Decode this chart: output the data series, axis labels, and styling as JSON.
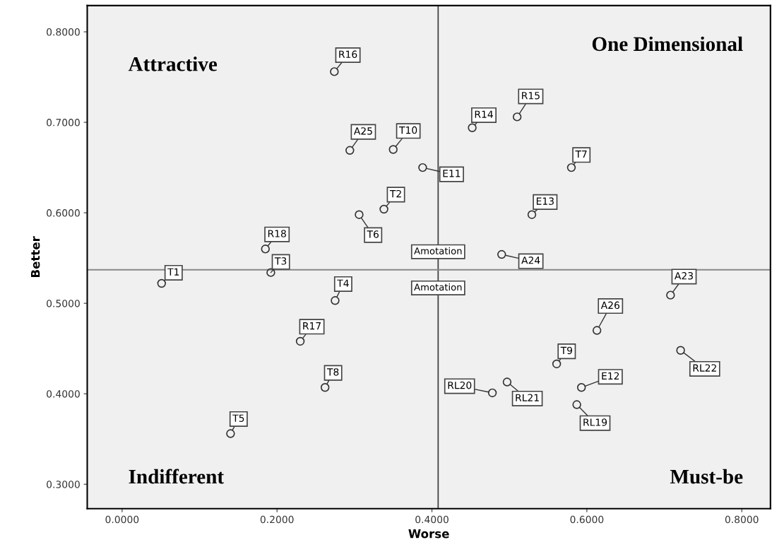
{
  "chart_data": {
    "type": "scatter",
    "xlabel": "Worse",
    "ylabel": "Better",
    "xlim": [
      -0.045,
      0.837
    ],
    "ylim": [
      0.273,
      0.829
    ],
    "xticks": [
      {
        "value": 0,
        "label": "0.0000"
      },
      {
        "value": 0.2,
        "label": "0.2000"
      },
      {
        "value": 0.4,
        "label": "0.4000"
      },
      {
        "value": 0.6,
        "label": "0.6000"
      },
      {
        "value": 0.8,
        "label": "0.8000"
      }
    ],
    "yticks": [
      {
        "value": 0.3,
        "label": "0.3000"
      },
      {
        "value": 0.4,
        "label": "0.4000"
      },
      {
        "value": 0.5,
        "label": "0.5000"
      },
      {
        "value": 0.6,
        "label": "0.6000"
      },
      {
        "value": 0.7,
        "label": "0.7000"
      },
      {
        "value": 0.8,
        "label": "0.8000"
      }
    ],
    "grid": false,
    "legend": false,
    "marker": "circle",
    "series": [
      {
        "color": "#333333",
        "x": [
          0.274,
          0.294,
          0.35,
          0.338,
          0.306,
          0.185,
          0.192,
          0.051,
          0.388,
          0.452,
          0.51,
          0.58,
          0.529,
          0.49,
          0.275,
          0.23,
          0.262,
          0.14,
          0.708,
          0.613,
          0.721,
          0.561,
          0.497,
          0.478,
          0.593,
          0.587
        ],
        "values": [
          0.756,
          0.669,
          0.67,
          0.604,
          0.598,
          0.56,
          0.534,
          0.522,
          0.65,
          0.694,
          0.706,
          0.65,
          0.598,
          0.554,
          0.503,
          0.458,
          0.407,
          0.356,
          0.509,
          0.47,
          0.448,
          0.433,
          0.413,
          0.401,
          0.407,
          0.388
        ]
      }
    ],
    "ref_lines": [
      {
        "axis": "x",
        "value": 0.408,
        "color": "#444444"
      },
      {
        "axis": "y",
        "value": 0.537,
        "color": "#888888"
      }
    ],
    "annotations": [
      "Attractive",
      "One Dimensional",
      "Indifferent",
      "Must-be",
      "Amotation",
      "Amotation",
      {
        "text": "R16",
        "x": 0.274,
        "y": 0.756
      },
      {
        "text": "A25",
        "x": 0.294,
        "y": 0.669
      },
      {
        "text": "T10",
        "x": 0.35,
        "y": 0.67
      },
      {
        "text": "T2",
        "x": 0.338,
        "y": 0.604
      },
      {
        "text": "T6",
        "x": 0.306,
        "y": 0.598
      },
      {
        "text": "R18",
        "x": 0.185,
        "y": 0.56
      },
      {
        "text": "T3",
        "x": 0.192,
        "y": 0.534
      },
      {
        "text": "T1",
        "x": 0.051,
        "y": 0.522
      },
      {
        "text": "E11",
        "x": 0.388,
        "y": 0.65
      },
      {
        "text": "R14",
        "x": 0.452,
        "y": 0.694
      },
      {
        "text": "R15",
        "x": 0.51,
        "y": 0.706
      },
      {
        "text": "T7",
        "x": 0.58,
        "y": 0.65
      },
      {
        "text": "E13",
        "x": 0.529,
        "y": 0.598
      },
      {
        "text": "A24",
        "x": 0.49,
        "y": 0.554
      },
      {
        "text": "T4",
        "x": 0.275,
        "y": 0.503
      },
      {
        "text": "R17",
        "x": 0.23,
        "y": 0.458
      },
      {
        "text": "T8",
        "x": 0.262,
        "y": 0.407
      },
      {
        "text": "T5",
        "x": 0.14,
        "y": 0.356
      },
      {
        "text": "A23",
        "x": 0.708,
        "y": 0.509
      },
      {
        "text": "A26",
        "x": 0.613,
        "y": 0.47
      },
      {
        "text": "RL22",
        "x": 0.721,
        "y": 0.448
      },
      {
        "text": "T9",
        "x": 0.561,
        "y": 0.433
      },
      {
        "text": "RL21",
        "x": 0.497,
        "y": 0.413
      },
      {
        "text": "RL20",
        "x": 0.478,
        "y": 0.401
      },
      {
        "text": "E12",
        "x": 0.593,
        "y": 0.407
      },
      {
        "text": "RL19",
        "x": 0.587,
        "y": 0.388
      }
    ]
  }
}
